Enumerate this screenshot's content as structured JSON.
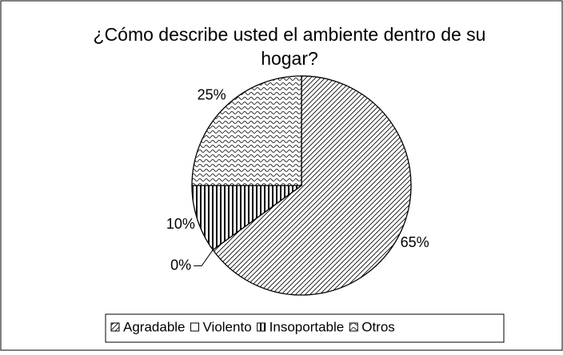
{
  "chart_data": {
    "type": "pie",
    "title": "¿Cómo describe usted el ambiente dentro de su hogar?",
    "categories": [
      "Agradable",
      "Violento",
      "Insoportable",
      "Otros"
    ],
    "values": [
      65,
      0,
      10,
      25
    ],
    "value_labels": [
      "65%",
      "0%",
      "10%",
      "25%"
    ],
    "legend": "bottom"
  }
}
